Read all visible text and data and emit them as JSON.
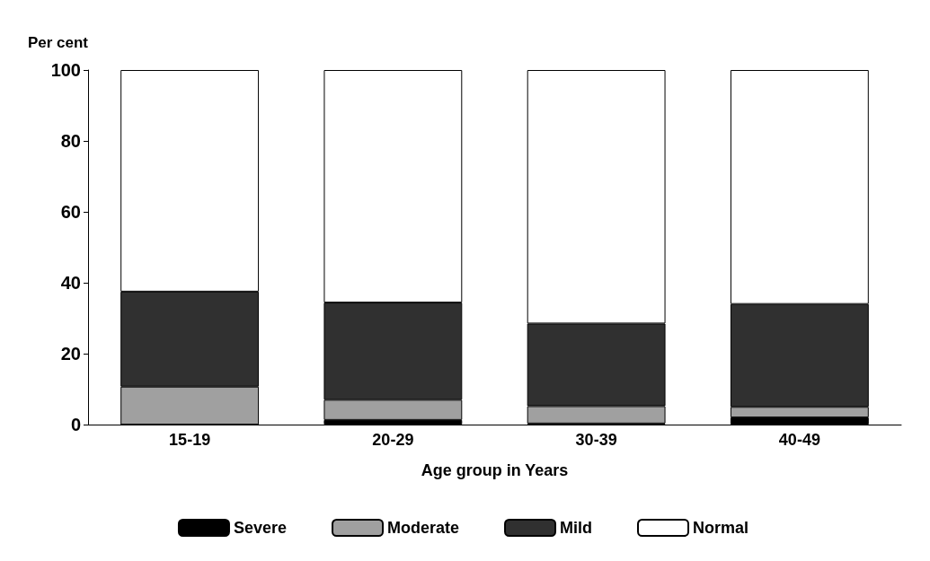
{
  "chart_data": {
    "type": "bar",
    "stacked": true,
    "ylabel": "Per cent",
    "xlabel": "Age group in Years",
    "categories": [
      "15-19",
      "20-29",
      "30-39",
      "40-49"
    ],
    "series": [
      {
        "name": "Severe",
        "color": "#000000",
        "values": [
          0,
          1.3,
          0.3,
          2
        ]
      },
      {
        "name": "Moderate",
        "color": "#a0a0a0",
        "values": [
          10.7,
          5.7,
          4.9,
          3
        ]
      },
      {
        "name": "Mild",
        "color": "#303030",
        "values": [
          26.8,
          27.4,
          23.3,
          29
        ]
      },
      {
        "name": "Normal",
        "color": "#ffffff",
        "values": [
          62.5,
          65.6,
          71.5,
          66
        ]
      }
    ],
    "ylim": [
      0,
      100
    ],
    "yticks": [
      0,
      20,
      40,
      60,
      80,
      100
    ],
    "grid": false,
    "legend": "bottom"
  }
}
